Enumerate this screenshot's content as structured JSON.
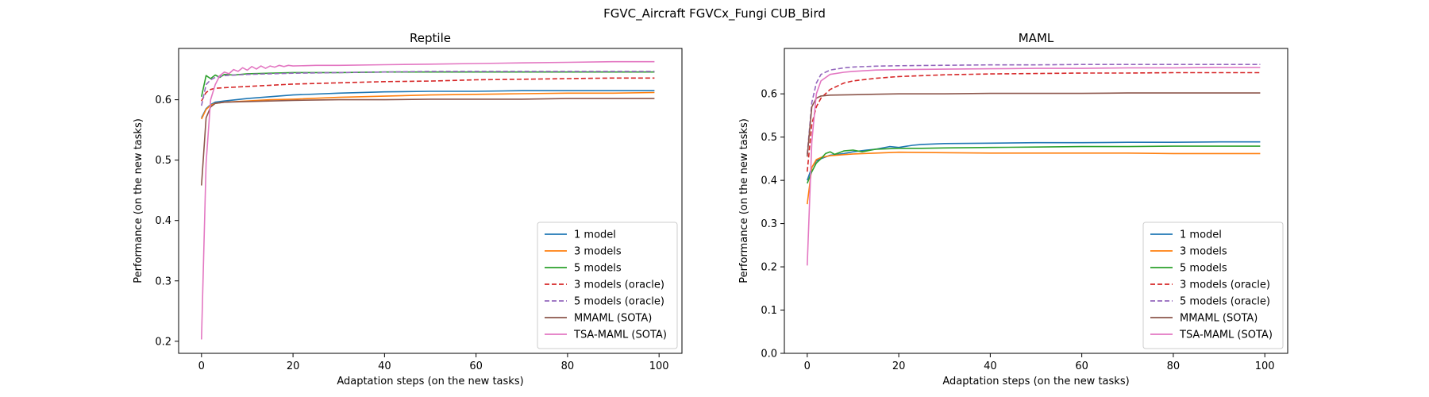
{
  "suptitle": "FGVC_Aircraft FGVCx_Fungi CUB_Bird",
  "chart_data": [
    {
      "type": "line",
      "title": "Reptile",
      "xlabel": "Adaptation steps (on the new tasks)",
      "ylabel": "Performance (on the new tasks)",
      "xlim": [
        -5,
        105
      ],
      "ylim": [
        0.18,
        0.685
      ],
      "xticks": [
        0,
        20,
        40,
        60,
        80,
        100
      ],
      "yticks": [
        0.2,
        0.3,
        0.4,
        0.5,
        0.6
      ],
      "legend_position": "lower-right",
      "series": [
        {
          "name": "1 model",
          "color": "#1f77b4",
          "dash": "solid",
          "x": [
            0,
            1,
            2,
            3,
            5,
            10,
            15,
            20,
            30,
            40,
            50,
            60,
            70,
            80,
            90,
            99
          ],
          "y": [
            0.57,
            0.585,
            0.592,
            0.596,
            0.598,
            0.602,
            0.605,
            0.608,
            0.611,
            0.613,
            0.614,
            0.614,
            0.615,
            0.615,
            0.615,
            0.615
          ]
        },
        {
          "name": "3 models",
          "color": "#ff7f0e",
          "dash": "solid",
          "x": [
            0,
            1,
            2,
            3,
            5,
            10,
            15,
            20,
            30,
            40,
            50,
            60,
            70,
            80,
            90,
            99
          ],
          "y": [
            0.568,
            0.584,
            0.591,
            0.594,
            0.596,
            0.598,
            0.6,
            0.601,
            0.604,
            0.606,
            0.608,
            0.609,
            0.61,
            0.611,
            0.611,
            0.612
          ]
        },
        {
          "name": "5 models",
          "color": "#2ca02c",
          "dash": "solid",
          "x": [
            0,
            1,
            2,
            3,
            4,
            5,
            7,
            10,
            15,
            20,
            30,
            40,
            50,
            60,
            70,
            80,
            90,
            99
          ],
          "y": [
            0.605,
            0.64,
            0.635,
            0.641,
            0.637,
            0.642,
            0.641,
            0.643,
            0.644,
            0.645,
            0.645,
            0.646,
            0.646,
            0.646,
            0.646,
            0.646,
            0.646,
            0.646
          ]
        },
        {
          "name": "3 models (oracle)",
          "color": "#d62728",
          "dash": "dashed",
          "x": [
            0,
            1,
            2,
            3,
            5,
            10,
            15,
            20,
            30,
            40,
            50,
            60,
            70,
            80,
            90,
            99
          ],
          "y": [
            0.598,
            0.612,
            0.617,
            0.619,
            0.62,
            0.622,
            0.624,
            0.626,
            0.628,
            0.63,
            0.631,
            0.633,
            0.634,
            0.635,
            0.636,
            0.636
          ]
        },
        {
          "name": "5 models (oracle)",
          "color": "#9467bd",
          "dash": "dashed",
          "x": [
            0,
            1,
            2,
            3,
            5,
            10,
            15,
            20,
            30,
            40,
            50,
            60,
            70,
            80,
            90,
            99
          ],
          "y": [
            0.59,
            0.625,
            0.633,
            0.637,
            0.64,
            0.642,
            0.643,
            0.644,
            0.645,
            0.646,
            0.647,
            0.647,
            0.647,
            0.647,
            0.647,
            0.647
          ]
        },
        {
          "name": "MMAML (SOTA)",
          "color": "#8c564b",
          "dash": "solid",
          "x": [
            0,
            1,
            2,
            3,
            5,
            10,
            15,
            20,
            30,
            40,
            50,
            60,
            70,
            80,
            90,
            99
          ],
          "y": [
            0.458,
            0.57,
            0.588,
            0.594,
            0.596,
            0.597,
            0.598,
            0.599,
            0.6,
            0.6,
            0.601,
            0.601,
            0.601,
            0.602,
            0.602,
            0.602
          ]
        },
        {
          "name": "TSA-MAML (SOTA)",
          "color": "#e377c2",
          "dash": "solid",
          "x": [
            0,
            1,
            2,
            3,
            4,
            5,
            6,
            7,
            8,
            9,
            10,
            11,
            12,
            13,
            14,
            15,
            16,
            17,
            18,
            19,
            20,
            25,
            30,
            40,
            50,
            60,
            70,
            80,
            90,
            99
          ],
          "y": [
            0.203,
            0.495,
            0.6,
            0.625,
            0.64,
            0.646,
            0.643,
            0.65,
            0.647,
            0.653,
            0.649,
            0.655,
            0.651,
            0.656,
            0.652,
            0.656,
            0.654,
            0.657,
            0.655,
            0.657,
            0.656,
            0.657,
            0.657,
            0.658,
            0.659,
            0.66,
            0.661,
            0.662,
            0.663,
            0.663
          ]
        }
      ]
    },
    {
      "type": "line",
      "title": "MAML",
      "xlabel": "Adaptation steps (on the new tasks)",
      "ylabel": "Performance (on the new tasks)",
      "xlim": [
        -5,
        105
      ],
      "ylim": [
        0.0,
        0.705
      ],
      "xticks": [
        0,
        20,
        40,
        60,
        80,
        100
      ],
      "yticks": [
        0.0,
        0.1,
        0.2,
        0.3,
        0.4,
        0.5,
        0.6
      ],
      "legend_position": "lower-right",
      "series": [
        {
          "name": "1 model",
          "color": "#1f77b4",
          "dash": "solid",
          "x": [
            0,
            1,
            2,
            3,
            5,
            8,
            10,
            13,
            15,
            18,
            20,
            23,
            25,
            30,
            40,
            50,
            60,
            70,
            80,
            90,
            99
          ],
          "y": [
            0.4,
            0.43,
            0.445,
            0.45,
            0.458,
            0.462,
            0.466,
            0.47,
            0.472,
            0.478,
            0.476,
            0.481,
            0.483,
            0.485,
            0.486,
            0.487,
            0.487,
            0.488,
            0.488,
            0.489,
            0.489
          ]
        },
        {
          "name": "3 models",
          "color": "#ff7f0e",
          "dash": "solid",
          "x": [
            0,
            1,
            2,
            3,
            5,
            10,
            15,
            20,
            30,
            40,
            50,
            60,
            70,
            80,
            90,
            99
          ],
          "y": [
            0.345,
            0.43,
            0.448,
            0.453,
            0.457,
            0.461,
            0.463,
            0.465,
            0.464,
            0.463,
            0.463,
            0.463,
            0.463,
            0.462,
            0.462,
            0.462
          ]
        },
        {
          "name": "5 models",
          "color": "#2ca02c",
          "dash": "solid",
          "x": [
            0,
            1,
            2,
            3,
            4,
            5,
            6,
            8,
            10,
            12,
            15,
            20,
            25,
            30,
            40,
            50,
            60,
            70,
            80,
            90,
            99
          ],
          "y": [
            0.393,
            0.42,
            0.44,
            0.45,
            0.462,
            0.466,
            0.46,
            0.468,
            0.47,
            0.466,
            0.472,
            0.474,
            0.474,
            0.475,
            0.476,
            0.477,
            0.478,
            0.478,
            0.479,
            0.479,
            0.479
          ]
        },
        {
          "name": "3 models (oracle)",
          "color": "#d62728",
          "dash": "dashed",
          "x": [
            0,
            1,
            2,
            3,
            5,
            8,
            10,
            15,
            20,
            25,
            30,
            40,
            50,
            60,
            70,
            80,
            90,
            99
          ],
          "y": [
            0.42,
            0.53,
            0.57,
            0.59,
            0.61,
            0.625,
            0.63,
            0.636,
            0.64,
            0.642,
            0.644,
            0.646,
            0.647,
            0.648,
            0.648,
            0.649,
            0.649,
            0.649
          ]
        },
        {
          "name": "5 models (oracle)",
          "color": "#9467bd",
          "dash": "dashed",
          "x": [
            0,
            1,
            2,
            3,
            5,
            8,
            10,
            15,
            20,
            30,
            40,
            50,
            60,
            70,
            80,
            90,
            99
          ],
          "y": [
            0.46,
            0.58,
            0.625,
            0.645,
            0.655,
            0.66,
            0.662,
            0.664,
            0.665,
            0.666,
            0.667,
            0.667,
            0.668,
            0.668,
            0.668,
            0.668,
            0.668
          ]
        },
        {
          "name": "MMAML (SOTA)",
          "color": "#8c564b",
          "dash": "solid",
          "x": [
            0,
            1,
            2,
            3,
            5,
            10,
            15,
            20,
            30,
            40,
            50,
            60,
            70,
            80,
            90,
            99
          ],
          "y": [
            0.455,
            0.57,
            0.59,
            0.595,
            0.597,
            0.598,
            0.599,
            0.6,
            0.6,
            0.601,
            0.601,
            0.601,
            0.602,
            0.602,
            0.602,
            0.602
          ]
        },
        {
          "name": "TSA-MAML (SOTA)",
          "color": "#e377c2",
          "dash": "solid",
          "x": [
            0,
            1,
            2,
            3,
            5,
            8,
            10,
            15,
            20,
            30,
            40,
            50,
            60,
            70,
            80,
            90,
            99
          ],
          "y": [
            0.203,
            0.49,
            0.6,
            0.63,
            0.645,
            0.65,
            0.652,
            0.655,
            0.656,
            0.657,
            0.658,
            0.659,
            0.659,
            0.66,
            0.66,
            0.661,
            0.661
          ]
        }
      ]
    }
  ]
}
